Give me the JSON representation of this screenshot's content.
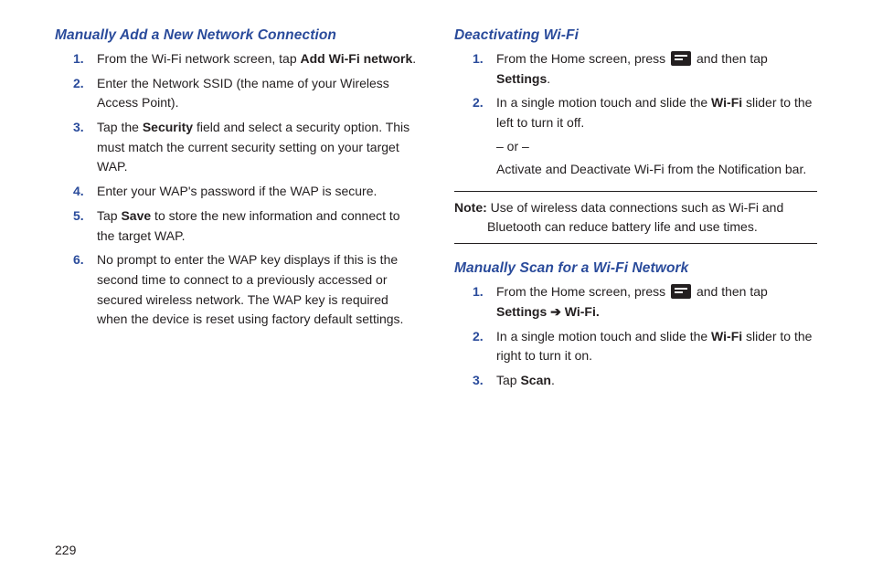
{
  "page_number": "229",
  "left": {
    "heading": "Manually Add a New Network Connection",
    "items": [
      {
        "pre": "From the Wi-Fi network screen, tap ",
        "bold": "Add Wi-Fi network",
        "post": "."
      },
      {
        "text": "Enter the Network SSID (the name of your Wireless Access Point)."
      },
      {
        "pre": "Tap the ",
        "bold": "Security",
        "post": " field and select a security option. This must match the current security setting on your target WAP."
      },
      {
        "text": "Enter your WAP's password if the WAP is secure."
      },
      {
        "pre": "Tap ",
        "bold": "Save",
        "post": " to store the new information and connect to the target WAP."
      },
      {
        "text": "No prompt to enter the WAP key displays if this is the second time to connect to a previously accessed or secured wireless network. The WAP key is required when the device is reset using factory default settings."
      }
    ]
  },
  "right_a": {
    "heading": "Deactivating Wi-Fi",
    "item1_pre": "From the Home screen, press ",
    "item1_post": " and then tap ",
    "item1_bold": "Settings",
    "item1_end": ".",
    "item2_pre": "In a single motion touch and slide the ",
    "item2_bold": "Wi-Fi",
    "item2_post": " slider to the left to turn it off.",
    "item2_or": "– or –",
    "item2_alt": "Activate and Deactivate Wi-Fi from the Notification bar."
  },
  "note": {
    "label": "Note:",
    "text": " Use of wireless data connections such as Wi-Fi and Bluetooth can reduce battery life and use times."
  },
  "right_b": {
    "heading": "Manually Scan for a Wi-Fi Network",
    "item1_pre": "From the Home screen, press ",
    "item1_post": " and then tap ",
    "item1_bold": "Settings ",
    "item1_arrow": "➔",
    "item1_bold2": " Wi-Fi.",
    "item2_pre": "In a single motion touch and slide the ",
    "item2_bold": "Wi-Fi",
    "item2_post": " slider to the right to turn it on.",
    "item3_pre": "Tap ",
    "item3_bold": "Scan",
    "item3_post": "."
  }
}
